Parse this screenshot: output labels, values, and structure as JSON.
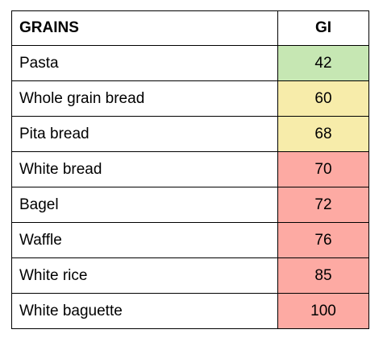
{
  "table": {
    "headers": {
      "name": "GRAINS",
      "gi": "GI"
    },
    "colors": {
      "low": "#c6e7b3",
      "medium": "#f7ecaa",
      "high": "#fdaaa3"
    },
    "rows": [
      {
        "name": "Pasta",
        "gi": "42",
        "level": "low"
      },
      {
        "name": "Whole grain bread",
        "gi": "60",
        "level": "medium"
      },
      {
        "name": "Pita bread",
        "gi": "68",
        "level": "medium"
      },
      {
        "name": "White bread",
        "gi": "70",
        "level": "high"
      },
      {
        "name": "Bagel",
        "gi": "72",
        "level": "high"
      },
      {
        "name": "Waffle",
        "gi": "76",
        "level": "high"
      },
      {
        "name": "White rice",
        "gi": "85",
        "level": "high"
      },
      {
        "name": "White baguette",
        "gi": "100",
        "level": "high"
      }
    ]
  }
}
